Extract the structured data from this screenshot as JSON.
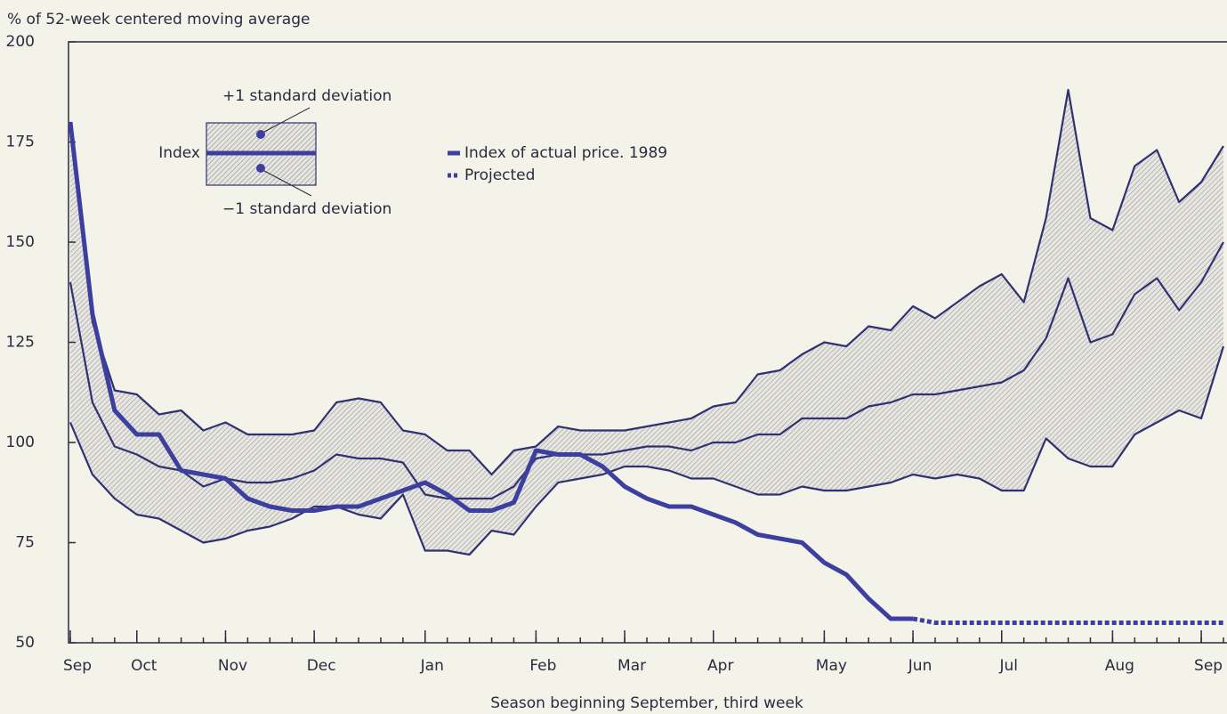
{
  "chart_data": {
    "type": "line",
    "y_label": "% of 52-week centered moving average",
    "x_label": "Season beginning September, third week",
    "x": [
      0,
      1,
      2,
      3,
      4,
      5,
      6,
      7,
      8,
      9,
      10,
      11,
      12,
      13,
      14,
      15,
      16,
      17,
      18,
      19,
      20,
      21,
      22,
      23,
      24,
      25,
      26,
      27,
      28,
      29,
      30,
      31,
      32,
      33,
      34,
      35,
      36,
      37,
      38,
      39,
      40,
      41,
      42,
      43,
      44,
      45,
      46,
      47,
      48,
      49,
      50,
      51,
      52
    ],
    "xlim": [
      0,
      52
    ],
    "xticks": [
      {
        "value": 0,
        "label": "Sep"
      },
      {
        "value": 3,
        "label": "Oct"
      },
      {
        "value": 7,
        "label": "Nov"
      },
      {
        "value": 11,
        "label": "Dec"
      },
      {
        "value": 16,
        "label": "Jan"
      },
      {
        "value": 21,
        "label": "Feb"
      },
      {
        "value": 25,
        "label": "Mar"
      },
      {
        "value": 29,
        "label": "Apr"
      },
      {
        "value": 34,
        "label": "May"
      },
      {
        "value": 38,
        "label": "Jun"
      },
      {
        "value": 42,
        "label": "Jul"
      },
      {
        "value": 47,
        "label": "Aug"
      },
      {
        "value": 51,
        "label": "Sep"
      }
    ],
    "ylim": [
      50,
      200
    ],
    "yticks": [
      50,
      75,
      100,
      125,
      150,
      175,
      200
    ],
    "band_color": "#9a9aa8",
    "series": [
      {
        "name": "+1 standard deviation",
        "color": "#2e3272",
        "values": [
          180,
          130,
          113,
          112,
          107,
          108,
          103,
          105,
          102,
          102,
          102,
          103,
          110,
          111,
          110,
          103,
          102,
          98,
          98,
          92,
          98,
          99,
          104,
          103,
          103,
          103,
          104,
          105,
          106,
          109,
          110,
          117,
          118,
          122,
          125,
          124,
          129,
          128,
          134,
          131,
          135,
          139,
          142,
          135,
          156,
          188,
          156,
          153,
          169,
          173,
          160,
          165,
          174
        ]
      },
      {
        "name": "Index",
        "color": "#2e3272",
        "values": [
          140,
          110,
          99,
          97,
          94,
          93,
          89,
          91,
          90,
          90,
          91,
          93,
          97,
          96,
          96,
          95,
          87,
          86,
          86,
          86,
          89,
          96,
          97,
          97,
          97,
          98,
          99,
          99,
          98,
          100,
          100,
          102,
          102,
          106,
          106,
          106,
          109,
          110,
          112,
          112,
          113,
          114,
          115,
          118,
          126,
          141,
          125,
          127,
          137,
          141,
          133,
          140,
          150
        ]
      },
      {
        "name": "−1 standard deviation",
        "color": "#2e3272",
        "values": [
          105,
          92,
          86,
          82,
          81,
          78,
          75,
          76,
          78,
          79,
          81,
          84,
          84,
          82,
          81,
          87,
          73,
          73,
          72,
          78,
          77,
          84,
          90,
          91,
          92,
          94,
          94,
          93,
          91,
          91,
          89,
          87,
          87,
          89,
          88,
          88,
          89,
          90,
          92,
          91,
          92,
          91,
          88,
          88,
          101,
          96,
          94,
          94,
          102,
          105,
          108,
          106,
          124
        ]
      },
      {
        "name": "Index of actual price. 1989",
        "color": "#3d3f9e",
        "values": [
          180,
          132,
          108,
          102,
          102,
          93,
          92,
          91,
          86,
          84,
          83,
          83,
          84,
          84,
          86,
          88,
          90,
          87,
          83,
          83,
          85,
          98,
          97,
          97,
          94,
          89,
          86,
          84,
          84,
          82,
          80,
          77,
          76,
          75,
          70,
          67,
          61,
          56,
          56,
          null,
          null,
          null,
          null,
          null,
          null,
          null,
          null,
          null,
          null,
          null,
          null,
          null,
          null
        ]
      },
      {
        "name": "Projected",
        "color": "#3d3f9e",
        "values": [
          null,
          null,
          null,
          null,
          null,
          null,
          null,
          null,
          null,
          null,
          null,
          null,
          null,
          null,
          null,
          null,
          null,
          null,
          null,
          null,
          null,
          null,
          null,
          null,
          null,
          null,
          null,
          null,
          null,
          null,
          null,
          null,
          null,
          null,
          null,
          null,
          null,
          null,
          56,
          55,
          55,
          55,
          55,
          55,
          55,
          55,
          55,
          55,
          55,
          55,
          55,
          55,
          55
        ]
      }
    ]
  }
}
